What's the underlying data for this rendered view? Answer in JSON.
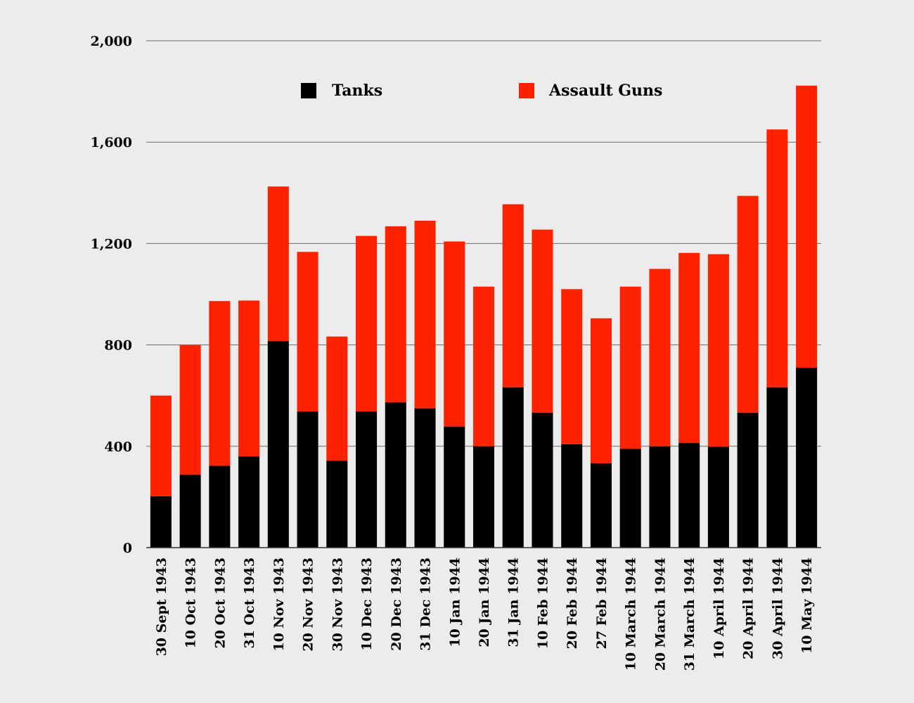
{
  "chart_data": {
    "type": "bar",
    "stacked": true,
    "title": "",
    "xlabel": "",
    "ylabel": "",
    "ylim": [
      0,
      2000
    ],
    "yticks": [
      0,
      400,
      800,
      1200,
      1600,
      2000
    ],
    "ytick_labels": [
      "0",
      "400",
      "800",
      "1,200",
      "1,600",
      "2,000"
    ],
    "grid": true,
    "legend_position": "top-center",
    "categories": [
      "30 Sept 1943",
      "10 Oct 1943",
      "20 Oct 1943",
      "31 Oct 1943",
      "10 Nov 1943",
      "20 Nov 1943",
      "30 Nov 1943",
      "10 Dec 1943",
      "20 Dec 1943",
      "31 Dec 1943",
      "10 Jan 1944",
      "20 Jan 1944",
      "31 Jan 1944",
      "10 Feb 1944",
      "20 Feb 1944",
      "27 Feb 1944",
      "10 March 1944",
      "20 March 1944",
      "31 March 1944",
      "10 April 1944",
      "20 April 1944",
      "30 April 1944",
      "10 May 1944"
    ],
    "series": [
      {
        "name": "Tanks",
        "color": "#000000",
        "values": [
          203,
          288,
          323,
          360,
          815,
          537,
          343,
          537,
          573,
          550,
          478,
          400,
          633,
          533,
          408,
          333,
          390,
          400,
          413,
          398,
          533,
          633,
          710
        ]
      },
      {
        "name": "Assault Guns",
        "color": "#ff2200",
        "values": [
          397,
          512,
          650,
          615,
          610,
          630,
          490,
          693,
          695,
          740,
          730,
          630,
          722,
          722,
          612,
          572,
          640,
          700,
          750,
          760,
          855,
          1017,
          1113
        ]
      }
    ]
  }
}
